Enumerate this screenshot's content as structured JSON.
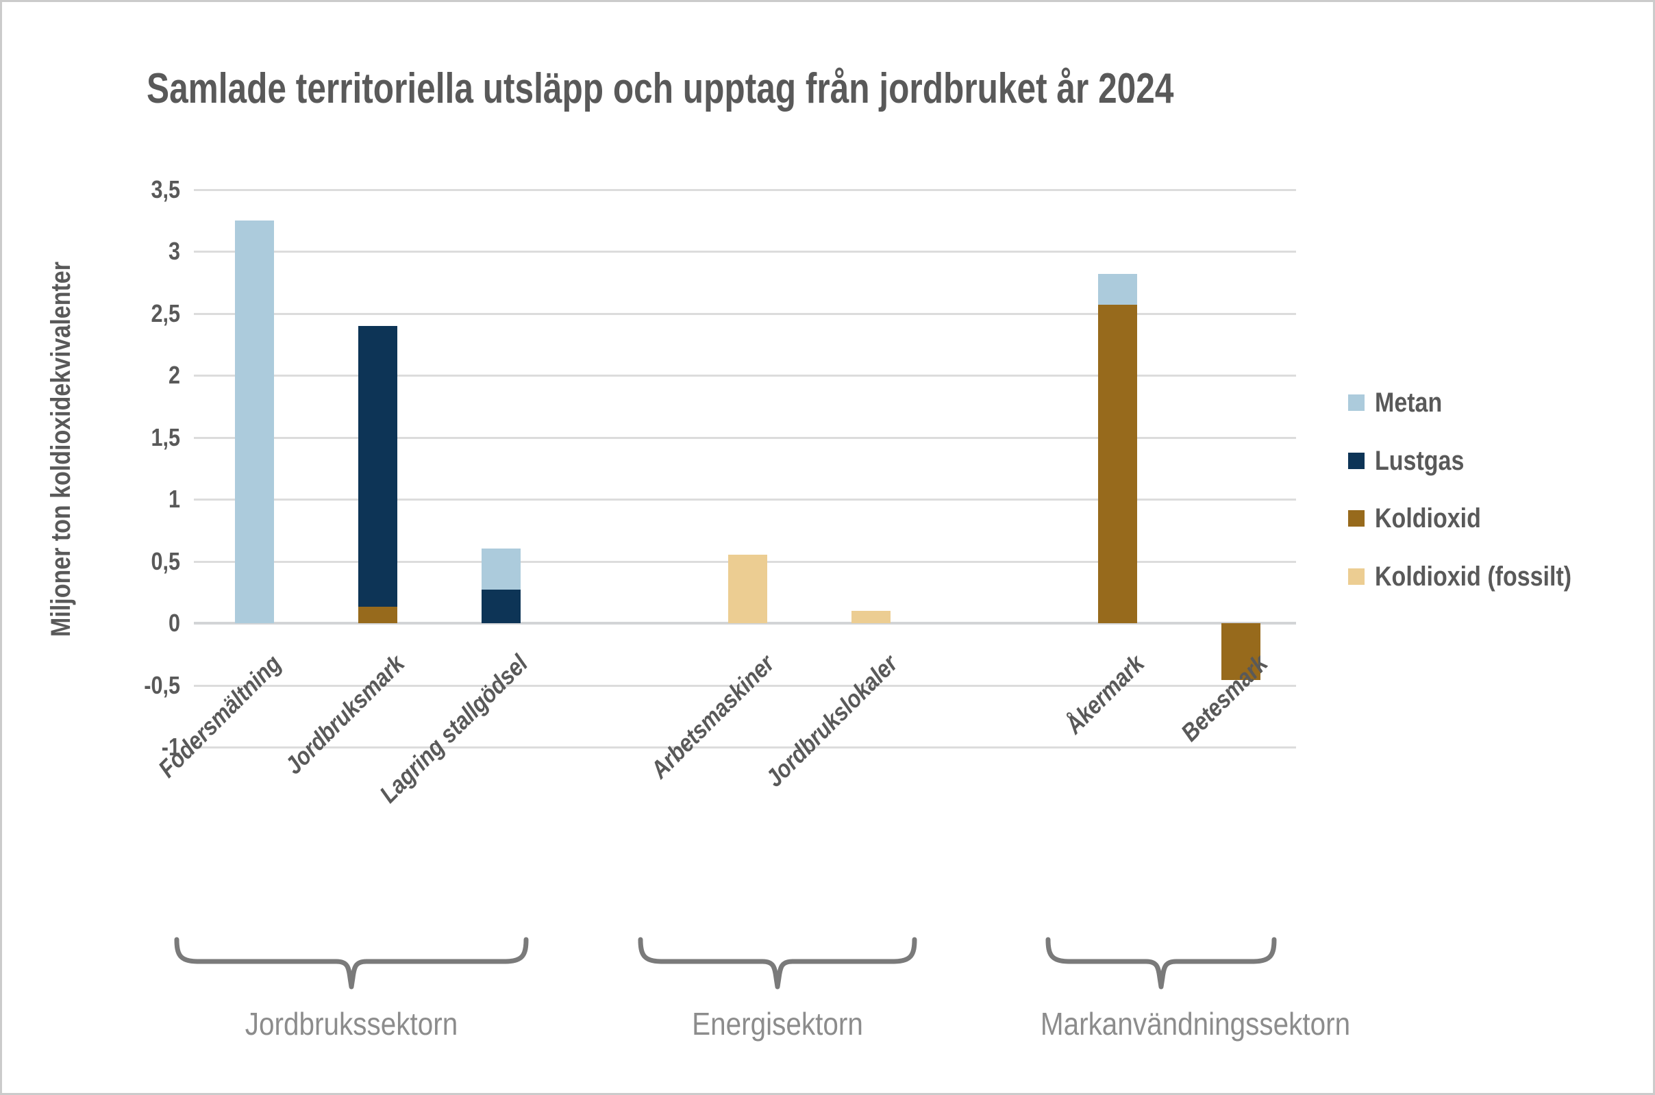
{
  "page": {
    "background": "#FFFFFF",
    "frame_color": "#CBCBCB"
  },
  "chart_data": {
    "type": "bar",
    "stacked": true,
    "title": "Samlade territoriella utsläpp och upptag från jordbruket år 2024",
    "ylabel": "Miljoner ton koldioxidekvivalenter",
    "xlabel": "",
    "y_axis": {
      "min": -1,
      "max": 3.5,
      "step": 0.5,
      "gridlines": true,
      "ticks": [
        {
          "label": "3,5",
          "value": 3.5
        },
        {
          "label": "3",
          "value": 3
        },
        {
          "label": "2,5",
          "value": 2.5
        },
        {
          "label": "2",
          "value": 2
        },
        {
          "label": "1,5",
          "value": 1.5
        },
        {
          "label": "1",
          "value": 1
        },
        {
          "label": "0,5",
          "value": 0.5
        },
        {
          "label": "0",
          "value": 0
        },
        {
          "label": "-0,5",
          "value": -0.5
        },
        {
          "label": "-1",
          "value": -1
        }
      ]
    },
    "series": [
      {
        "name": "Metan",
        "color": "#ACCBDC"
      },
      {
        "name": "Lustgas",
        "color": "#0D3456"
      },
      {
        "name": "Koldioxid",
        "color": "#976A1C"
      },
      {
        "name": "Koldioxid (fossilt)",
        "color": "#ECCD92"
      }
    ],
    "legend": {
      "position": "right",
      "labels": [
        "Metan",
        "Lustgas",
        "Koldioxid",
        "Koldioxid (fossilt)"
      ]
    },
    "categories": [
      {
        "label": "Fodersmältning",
        "group": "Jordbrukssektorn",
        "values": {
          "Metan": 3.25
        }
      },
      {
        "label": "Jordbruksmark",
        "group": "Jordbrukssektorn",
        "values": {
          "Koldioxid": 0.13,
          "Lustgas": 2.27
        }
      },
      {
        "label": "Lagring stallgödsel",
        "group": "Jordbrukssektorn",
        "values": {
          "Lustgas": 0.27,
          "Metan": 0.33
        }
      },
      {
        "label": "Arbetsmaskiner",
        "group": "Energisektorn",
        "values": {
          "Koldioxid (fossilt)": 0.55
        }
      },
      {
        "label": "Jordbrukslokaler",
        "group": "Energisektorn",
        "values": {
          "Koldioxid (fossilt)": 0.1
        }
      },
      {
        "label": "Åkermark",
        "group": "Markanvändningssektorn",
        "values": {
          "Koldioxid": 2.57,
          "Metan": 0.25
        }
      },
      {
        "label": "Betesmark",
        "group": "Markanvändningssektorn",
        "values": {
          "Koldioxid": -0.46
        }
      }
    ],
    "groups": [
      "Jordbrukssektorn",
      "Energisektorn",
      "Markanvändningssektorn"
    ],
    "colors": {
      "text": "#595959",
      "gridline": "#DCDCDC",
      "brace": "#7A7A7A",
      "group_label": "#8C8C8C"
    }
  }
}
